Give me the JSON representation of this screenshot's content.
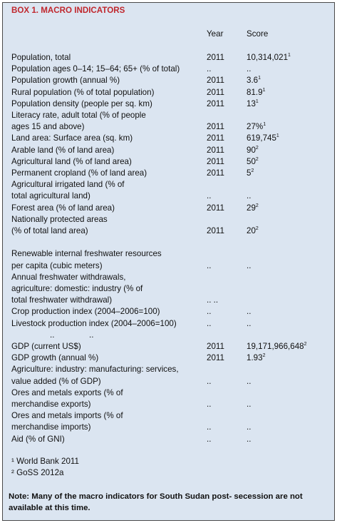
{
  "title": "BOX 1. MACRO INDICATORS",
  "header": {
    "year": "Year",
    "score": "Score"
  },
  "rows": [
    {
      "label": [
        "Population, total"
      ],
      "year": "2011",
      "score": "10,314,021",
      "sup": "1"
    },
    {
      "label": [
        "Population ages 0–14; 15–64; 65+ (% of total)"
      ],
      "year": "..",
      "score": ".."
    },
    {
      "label": [
        "Population growth (annual %)"
      ],
      "year": "2011",
      "score": "3.6",
      "sup": "1"
    },
    {
      "label": [
        "Rural population (% of total population)"
      ],
      "year": "2011",
      "score": "81.9",
      "sup": "1"
    },
    {
      "label": [
        "Population density (people per sq. km)"
      ],
      "year": "2011",
      "score": "13",
      "sup": "1"
    },
    {
      "label": [
        "Literacy rate, adult total (% of people",
        "ages 15 and above)"
      ],
      "year": "2011",
      "score": "27%",
      "sup": "1"
    },
    {
      "label": [
        "Land area: Surface area (sq. km)"
      ],
      "year": "2011",
      "score": "619,745",
      "sup": "1"
    },
    {
      "label": [
        "Arable land (% of land area)"
      ],
      "year": "2011",
      "score": "90",
      "sup": "2"
    },
    {
      "label": [
        "Agricultural land (% of land area)"
      ],
      "year": "2011",
      "score": "50",
      "sup": "2"
    },
    {
      "label": [
        "Permanent cropland (% of land area)"
      ],
      "year": "2011",
      "score": "5",
      "sup": "2"
    },
    {
      "label": [
        "Agricultural irrigated land (% of",
        "total agricultural land)"
      ],
      "year": "..",
      "score": ".."
    },
    {
      "label": [
        "Forest area (% of land area)"
      ],
      "year": "2011",
      "score": "29",
      "sup": "2"
    },
    {
      "label": [
        "Nationally protected areas",
        "(% of total land area)"
      ],
      "year": "2011",
      "score": "20",
      "sup": "2"
    },
    {
      "label": [
        "Renewable internal freshwater resources",
        "per capita (cubic meters)"
      ],
      "year": "..",
      "score": ".."
    },
    {
      "label": [
        "Annual freshwater withdrawals,",
        "agriculture: domestic: industry (% of",
        "total freshwater withdrawal)"
      ],
      "year": ".. .."
    },
    {
      "label": [
        "Crop production index (2004–2006=100)"
      ],
      "year": "..",
      "score": ".."
    },
    {
      "label": [
        "Livestock production index (2004–2006=100)"
      ],
      "year": "..",
      "score": ".."
    },
    {
      "marks": [
        "..",
        ".."
      ]
    },
    {
      "label": [
        "GDP (current US$)"
      ],
      "year": "2011",
      "score": "19,171,966,648",
      "sup": "2"
    },
    {
      "label": [
        "GDP growth (annual %)"
      ],
      "year": "2011",
      "score": "1.93",
      "sup": "2"
    },
    {
      "label": [
        "Agriculture: industry: manufacturing: services,",
        "value added (% of GDP)"
      ],
      "year": "..",
      "score": ".."
    },
    {
      "label": [
        "Ores and metals exports (% of",
        "merchandise exports)"
      ],
      "year": "..",
      "score": ".."
    },
    {
      "label": [
        "Ores and metals imports (% of",
        "merchandise imports)"
      ],
      "year": "..",
      "score": ".."
    },
    {
      "label": [
        "Aid (% of GNI)"
      ],
      "year": "..",
      "score": ".."
    }
  ],
  "footnotes": [
    "¹ World Bank 2011",
    "² GoSS 2012a"
  ],
  "note": "Note: Many of the macro indicators for South Sudan post- secession are not available at this time."
}
